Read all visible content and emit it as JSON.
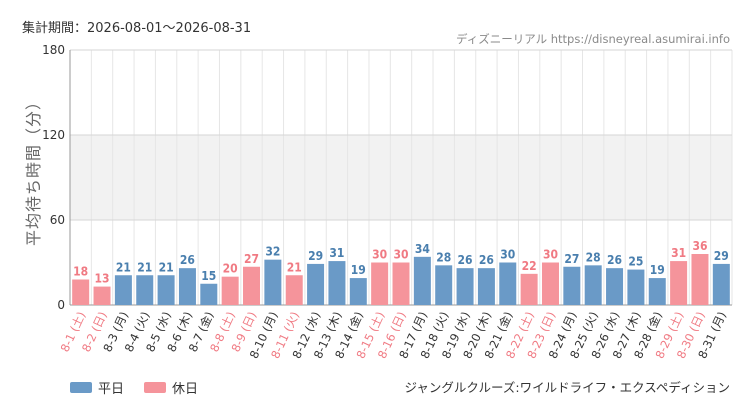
{
  "header": {
    "period": "集計期間：2026-08-01～2026-08-31",
    "source": "ディズニーリアル https://disneyreal.asumirai.info"
  },
  "footer": {
    "caption": "ジャングルクルーズ:ワイルドライフ・エクスペディション"
  },
  "colors": {
    "weekday": "#6a9ac7",
    "holiday": "#f5949b",
    "holiday_text": "#f07a83",
    "weekday_text": "#4a7fae",
    "band": "#f2f2f2"
  },
  "chart_data": {
    "type": "bar",
    "ylabel": "平均待ち時間（分）",
    "ylim": [
      0,
      180
    ],
    "yticks": [
      0,
      60,
      120,
      180
    ],
    "band": [
      60,
      120
    ],
    "grid": true,
    "legend_placement": "bottom-left",
    "series": [
      {
        "name": "平日",
        "key": "weekday"
      },
      {
        "name": "休日",
        "key": "holiday"
      }
    ],
    "categories": [
      "8-1 (土)",
      "8-2 (日)",
      "8-3 (月)",
      "8-4 (火)",
      "8-5 (水)",
      "8-6 (木)",
      "8-7 (金)",
      "8-8 (土)",
      "8-9 (日)",
      "8-10 (月)",
      "8-11 (火)",
      "8-12 (水)",
      "8-13 (木)",
      "8-14 (金)",
      "8-15 (土)",
      "8-16 (日)",
      "8-17 (月)",
      "8-18 (火)",
      "8-19 (水)",
      "8-20 (木)",
      "8-21 (金)",
      "8-22 (土)",
      "8-23 (日)",
      "8-24 (月)",
      "8-25 (火)",
      "8-26 (水)",
      "8-27 (木)",
      "8-28 (金)",
      "8-29 (土)",
      "8-30 (日)",
      "8-31 (月)"
    ],
    "values": [
      18,
      13,
      21,
      21,
      21,
      26,
      15,
      20,
      27,
      32,
      21,
      29,
      31,
      19,
      30,
      30,
      34,
      28,
      26,
      26,
      30,
      22,
      30,
      27,
      28,
      26,
      25,
      19,
      31,
      36,
      29
    ],
    "day_type": [
      "holiday",
      "holiday",
      "weekday",
      "weekday",
      "weekday",
      "weekday",
      "weekday",
      "holiday",
      "holiday",
      "weekday",
      "holiday",
      "weekday",
      "weekday",
      "weekday",
      "holiday",
      "holiday",
      "weekday",
      "weekday",
      "weekday",
      "weekday",
      "weekday",
      "holiday",
      "holiday",
      "weekday",
      "weekday",
      "weekday",
      "weekday",
      "weekday",
      "holiday",
      "holiday",
      "weekday"
    ]
  }
}
